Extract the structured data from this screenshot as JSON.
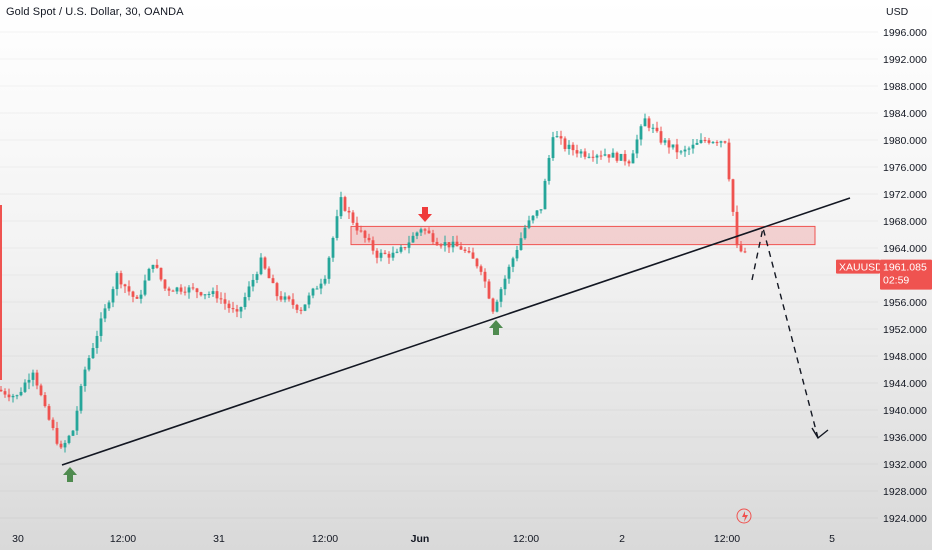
{
  "header": {
    "title": "Gold Spot / U.S. Dollar, 30, OANDA"
  },
  "axis": {
    "currency": "USD",
    "y_ticks": [
      "1996.000",
      "1992.000",
      "1988.000",
      "1984.000",
      "1980.000",
      "1976.000",
      "1972.000",
      "1968.000",
      "1964.000",
      "1960.000",
      "1956.000",
      "1952.000",
      "1948.000",
      "1944.000",
      "1940.000",
      "1936.000",
      "1932.000",
      "1928.000",
      "1924.000"
    ],
    "x_ticks": [
      "30",
      "12:00",
      "31",
      "12:00",
      "Jun",
      "12:00",
      "2",
      "12:00",
      "5"
    ]
  },
  "price_tag": {
    "symbol": "XAUUSD",
    "price": "1961.085",
    "countdown": "02:59"
  },
  "colors": {
    "up": "#26a69a",
    "down": "#ef5350",
    "zone": "#ef5350",
    "arrow_down": "#ef3b3b",
    "arrow_up": "#4f8b4f",
    "line": "#131722"
  },
  "chart_data": {
    "type": "candlestick",
    "symbol": "XAUUSD",
    "interval": "30",
    "ylim": [
      1922.0,
      1998.0
    ],
    "x_index_range": [
      0,
      188
    ],
    "candles": [],
    "annotations": {
      "resistance_zone": {
        "from_index": 88,
        "to_index": 204,
        "low": 1964.5,
        "high": 1967.2
      },
      "trendline": {
        "from": [
          15,
          1932.2
        ],
        "to": [
          213,
          1971.6
        ]
      },
      "projection": [
        [
          191,
          1959.8
        ],
        [
          196,
          1967.5
        ],
        [
          212,
          1936.2
        ]
      ],
      "down_arrow_index": 107,
      "up_arrow_indices": [
        17,
        125
      ]
    }
  }
}
